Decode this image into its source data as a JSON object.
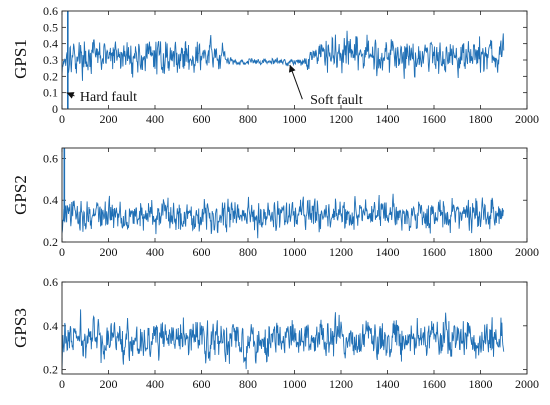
{
  "chart_data": [
    {
      "type": "line",
      "ylabel": "GPS1",
      "xlim": [
        0,
        2000
      ],
      "ylim": [
        0,
        0.6
      ],
      "xticks": [
        0,
        200,
        400,
        600,
        800,
        1000,
        1200,
        1400,
        1600,
        1800,
        2000
      ],
      "yticks": [
        0,
        0.1,
        0.2,
        0.3,
        0.4,
        0.5,
        0.6
      ],
      "x_range": [
        0,
        1900
      ],
      "series_color": "#1f6fb5",
      "segments": [
        {
          "x_start": 0,
          "x_end": 700,
          "mean": 0.32,
          "min": 0.15,
          "max": 0.55
        },
        {
          "x_start": 700,
          "x_end": 1050,
          "mean": 0.29,
          "min": 0.25,
          "max": 0.33
        },
        {
          "x_start": 1050,
          "x_end": 1900,
          "mean": 0.33,
          "min": 0.15,
          "max": 0.55
        }
      ],
      "events": [
        {
          "x": 25,
          "y_from": 0.0,
          "y_to": 0.6,
          "kind": "hard"
        }
      ],
      "annotations": [
        {
          "text": "Hard fault",
          "arrow_to": {
            "x": 20,
            "y": 0.1
          },
          "text_at": {
            "x": 200,
            "y": 0.08
          }
        },
        {
          "text": "Soft fault",
          "arrow_to": {
            "x": 980,
            "y": 0.27
          },
          "text_at": {
            "x": 1180,
            "y": 0.06
          }
        }
      ]
    },
    {
      "type": "line",
      "ylabel": "GPS2",
      "xlim": [
        0,
        2000
      ],
      "ylim": [
        0.2,
        0.65
      ],
      "xticks": [
        0,
        200,
        400,
        600,
        800,
        1000,
        1200,
        1400,
        1600,
        1800,
        2000
      ],
      "yticks": [
        0.2,
        0.4,
        0.6
      ],
      "x_range": [
        0,
        1900
      ],
      "series_color": "#1f6fb5",
      "segments": [
        {
          "x_start": 0,
          "x_end": 1900,
          "mean": 0.33,
          "min": 0.2,
          "max": 0.56
        }
      ],
      "events": [
        {
          "x": 10,
          "y_from": 0.3,
          "y_to": 0.65,
          "kind": "spike"
        }
      ],
      "annotations": []
    },
    {
      "type": "line",
      "ylabel": "GPS3",
      "xlim": [
        0,
        2000
      ],
      "ylim": [
        0.18,
        0.6
      ],
      "xticks": [
        0,
        200,
        400,
        600,
        800,
        1000,
        1200,
        1400,
        1600,
        1800,
        2000
      ],
      "yticks": [
        0.2,
        0.4,
        0.6
      ],
      "x_range": [
        0,
        1900
      ],
      "series_color": "#1f6fb5",
      "segments": [
        {
          "x_start": 0,
          "x_end": 1900,
          "mean": 0.34,
          "min": 0.19,
          "max": 0.57
        }
      ],
      "events": [],
      "annotations": []
    }
  ]
}
